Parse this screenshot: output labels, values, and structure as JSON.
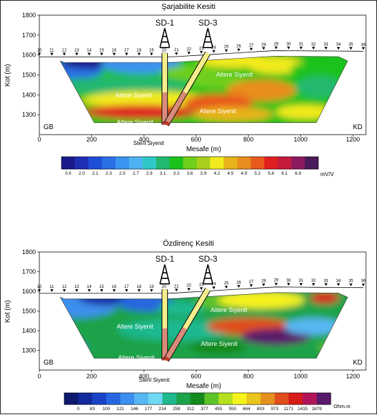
{
  "chart_data": [
    {
      "type": "heatmap",
      "title": "Şarjabilite Kesiti",
      "xlabel": "Mesafe (m)",
      "ylabel": "Kot (m)",
      "xlim": [
        0,
        1250
      ],
      "ylim": [
        1200,
        1800
      ],
      "x_ticks": [
        "0",
        "200",
        "400",
        "600",
        "800",
        "1000",
        "1200"
      ],
      "y_ticks": [
        "1300",
        "1400",
        "1500",
        "1600",
        "1700",
        "1800"
      ],
      "left_label": "GB",
      "right_label": "KD",
      "electrodes": [
        "10",
        "11",
        "12",
        "13",
        "14",
        "15",
        "16",
        "17",
        "18",
        "19",
        "20",
        "21",
        "22",
        "23",
        "24",
        "25",
        "26",
        "27",
        "28",
        "29",
        "30",
        "31",
        "32",
        "33",
        "34",
        "35",
        "36"
      ],
      "wells": [
        {
          "name": "SD-1",
          "x": 480
        },
        {
          "name": "SD-3",
          "x": 645
        }
      ],
      "annotations": [
        "Altere Siyenit",
        "Altere Siyenit",
        "Altere Siyenit",
        "Altere Siyenit",
        "Steril Siyenit"
      ],
      "colorbar": {
        "unit": "mV/V",
        "values": [
          "0.0",
          "2.0",
          "2.1",
          "2.3",
          "2.5",
          "2.7",
          "2.9",
          "3.1",
          "3.3",
          "3.6",
          "3.9",
          "4.2",
          "4.5",
          "4.9",
          "5.2",
          "5.6",
          "6.1",
          "6.9"
        ],
        "colors": [
          "#1a1a8c",
          "#1f2fb4",
          "#1f4ed6",
          "#2a6fe6",
          "#3a93ef",
          "#4fb2f2",
          "#2fc8c8",
          "#22b86f",
          "#1cc21c",
          "#6fcf1a",
          "#a8cf1e",
          "#f2ea1c",
          "#e9b21c",
          "#e98d1e",
          "#e85a1c",
          "#e02020",
          "#c41a3c",
          "#8c1a5e",
          "#4a1a5a"
        ]
      }
    },
    {
      "type": "heatmap",
      "title": "Özdirenç Kesiti",
      "xlabel": "Mesafe (m)",
      "ylabel": "Kot (m)",
      "xlim": [
        0,
        1250
      ],
      "ylim": [
        1200,
        1800
      ],
      "x_ticks": [
        "0",
        "200",
        "400",
        "600",
        "800",
        "1000",
        "1200"
      ],
      "y_ticks": [
        "1300",
        "1400",
        "1500",
        "1600",
        "1700",
        "1800"
      ],
      "left_label": "GB",
      "right_label": "KD",
      "electrodes": [
        "10",
        "11",
        "12",
        "13",
        "14",
        "15",
        "16",
        "17",
        "18",
        "19",
        "20",
        "21",
        "22",
        "23",
        "24",
        "25",
        "26",
        "27",
        "28",
        "29",
        "30",
        "31",
        "32",
        "33",
        "34",
        "35",
        "36"
      ],
      "wells": [
        {
          "name": "SD-1",
          "x": 480
        },
        {
          "name": "SD-3",
          "x": 645
        }
      ],
      "annotations": [
        "Altere Siyenit",
        "Altere Siyenit",
        "Altere Siyenit",
        "Altere Siyenit",
        "Steril Siyenit"
      ],
      "colorbar": {
        "unit": "Ohm.m",
        "values": [
          "0",
          "83",
          "100",
          "121",
          "146",
          "177",
          "214",
          "258",
          "312",
          "377",
          "455",
          "550",
          "664",
          "803",
          "973",
          "1171",
          "1415",
          "1879"
        ],
        "colors": [
          "#0d1a6e",
          "#132a9c",
          "#1a44c8",
          "#2766e0",
          "#3c8fee",
          "#57b7f3",
          "#6fd8f4",
          "#1fb88f",
          "#1ca34a",
          "#148a1c",
          "#5fc42a",
          "#b4e020",
          "#f6f21c",
          "#e9c41c",
          "#e58f1e",
          "#e04e1c",
          "#d81a1a",
          "#b0155a",
          "#5a1a6a"
        ]
      }
    }
  ]
}
